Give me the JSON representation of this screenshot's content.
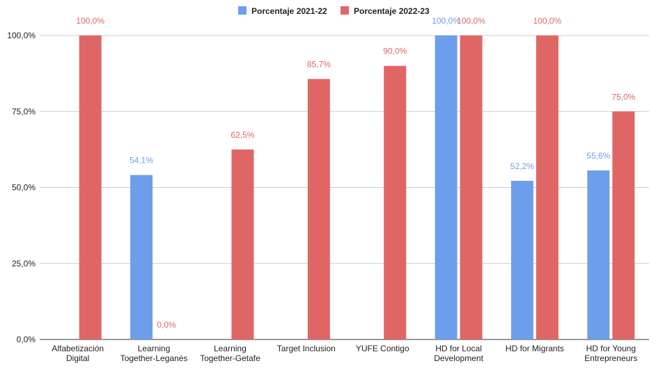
{
  "chart_data": {
    "type": "bar",
    "categories": [
      [
        "Alfabetización",
        "Digital"
      ],
      [
        "Learning",
        "Together-Leganés"
      ],
      [
        "Learning",
        "Together-Getafe"
      ],
      [
        "Target Inclusion"
      ],
      [
        "YUFE Contigo"
      ],
      [
        "HD for Local",
        "Development"
      ],
      [
        "HD for Migrants"
      ],
      [
        "HD for Young",
        "Entrepreneurs"
      ]
    ],
    "series": [
      {
        "name": "Porcentaje 2021-22",
        "color": "#6d9eeb",
        "label_color": "#6d9eeb",
        "values": [
          null,
          54.1,
          null,
          null,
          null,
          100.0,
          52.2,
          55.6
        ],
        "labels": [
          "",
          "54,1%",
          "",
          "",
          "",
          "100,0%",
          "52,2%",
          "55,6%"
        ]
      },
      {
        "name": "Porcentaje 2022-23",
        "color": "#e06666",
        "label_color": "#e06666",
        "values": [
          100.0,
          0.0,
          62.5,
          85.7,
          90.0,
          100.0,
          100.0,
          75.0
        ],
        "labels": [
          "100,0%",
          "0,0%",
          "62,5%",
          "85,7%",
          "90,0%",
          "100,0%",
          "100,0%",
          "75,0%"
        ]
      }
    ],
    "ylim": [
      0,
      100
    ],
    "yticks": [
      0,
      25,
      50,
      75,
      100
    ],
    "ytick_labels": [
      "0,0%",
      "25,0%",
      "50,0%",
      "75,0%",
      "100,0%"
    ],
    "legend_position": "top-center",
    "grid": true
  }
}
